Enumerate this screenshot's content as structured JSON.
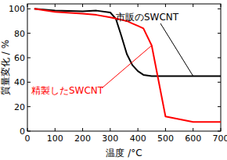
{
  "chart_data": {
    "type": "line",
    "xlabel": "温度 /°C",
    "ylabel": "質量変化 / %",
    "x": [
      25,
      100,
      200,
      250,
      300,
      320,
      340,
      360,
      380,
      400,
      420,
      450,
      500,
      600,
      700
    ],
    "series": [
      {
        "name": "市販のSWCNT",
        "color": "#000000",
        "values": [
          100,
          98.5,
          98,
          98.5,
          97,
          92,
          78,
          63,
          54,
          49,
          46,
          45,
          45,
          45,
          45
        ]
      },
      {
        "name": "精製したSWCNT",
        "color": "#ff0000",
        "values": [
          100,
          97.5,
          96,
          95,
          93,
          92,
          91,
          90,
          88,
          86,
          84,
          70,
          12,
          7.5,
          7.5
        ]
      }
    ],
    "xlim": [
      0,
      700
    ],
    "xticks": [
      0,
      100,
      200,
      300,
      400,
      500,
      600,
      700
    ],
    "ylim": [
      0,
      104
    ],
    "yticks": [
      0,
      20,
      40,
      60,
      80,
      100
    ],
    "grid": false
  }
}
